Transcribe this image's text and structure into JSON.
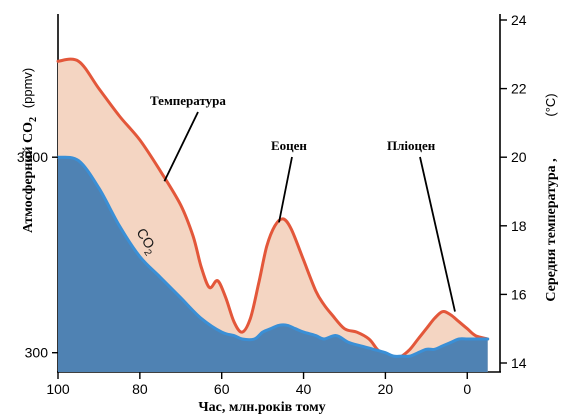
{
  "chart_data": {
    "type": "area",
    "xlabel": "Час, млн.років тому",
    "ylabel_left": "Атмосферний CO",
    "ylabel_left_sub": "2",
    "ylabel_left_unit": "(ppmv)",
    "ylabel_right": "Середня температура ,",
    "ylabel_right_unit": "(°C)",
    "x_ticks": [
      "100",
      "80",
      "60",
      "40",
      "20",
      "0"
    ],
    "x_tick_values": [
      100,
      80,
      60,
      40,
      20,
      0
    ],
    "xlim": [
      100,
      -8
    ],
    "left_ticks": [
      "3900",
      "300"
    ],
    "right_ticks": [
      "24",
      "22",
      "20",
      "18",
      "16",
      "14"
    ],
    "right_tick_values": [
      24,
      22,
      20,
      18,
      16,
      14
    ],
    "ylim_right": [
      14,
      24
    ],
    "series": [
      {
        "name": "Температура",
        "axis": "right",
        "color": "#e3573a",
        "fill": "#f4d5c2",
        "x": [
          100,
          95,
          90,
          85,
          80,
          75,
          70,
          67,
          65,
          63,
          61,
          59,
          57,
          55,
          53,
          51,
          49,
          47,
          45,
          43,
          40,
          37,
          35,
          33,
          30,
          27,
          24,
          22,
          20,
          18,
          16,
          14,
          12,
          10,
          8,
          6,
          4,
          2,
          0,
          -2,
          -5
        ],
        "values": [
          22.8,
          22.8,
          22.0,
          21.2,
          20.5,
          19.6,
          18.6,
          17.7,
          16.8,
          16.2,
          16.4,
          15.9,
          15.2,
          14.9,
          15.3,
          16.3,
          17.4,
          18.0,
          18.2,
          17.9,
          17.0,
          16.1,
          15.7,
          15.4,
          15.0,
          14.9,
          14.7,
          14.4,
          14.2,
          14.1,
          14.2,
          14.4,
          14.7,
          15.0,
          15.3,
          15.5,
          15.4,
          15.2,
          15.0,
          14.8,
          14.7
        ]
      },
      {
        "name": "CO2",
        "axis": "left",
        "color": "#3a8fd6",
        "fill": "#4f82b3",
        "x": [
          100,
          95,
          90,
          85,
          80,
          75,
          70,
          65,
          60,
          57,
          55,
          52,
          50,
          48,
          46,
          44,
          42,
          40,
          37,
          35,
          32,
          29,
          26,
          23,
          20,
          18,
          16,
          14,
          12,
          10,
          8,
          6,
          4,
          2,
          0,
          -2,
          -5
        ],
        "values": [
          20.0,
          19.9,
          19.1,
          18.0,
          17.1,
          16.5,
          15.9,
          15.3,
          14.9,
          14.8,
          14.7,
          14.7,
          14.9,
          15.0,
          15.1,
          15.1,
          15.0,
          14.9,
          14.8,
          14.7,
          14.8,
          14.6,
          14.5,
          14.4,
          14.3,
          14.2,
          14.2,
          14.2,
          14.3,
          14.4,
          14.4,
          14.5,
          14.6,
          14.7,
          14.7,
          14.7,
          14.7
        ]
      }
    ],
    "annotations": [
      {
        "text": "Температура",
        "target_x": 74,
        "target_y": 19.3
      },
      {
        "text": "Еоцен",
        "target_x": 46,
        "target_y": 18.1
      },
      {
        "text": "Пліоцен",
        "target_x": 3,
        "target_y": 15.5
      }
    ],
    "series_label_co2": "CO",
    "series_label_co2_sub": "2",
    "grid": false,
    "legend": "none"
  }
}
